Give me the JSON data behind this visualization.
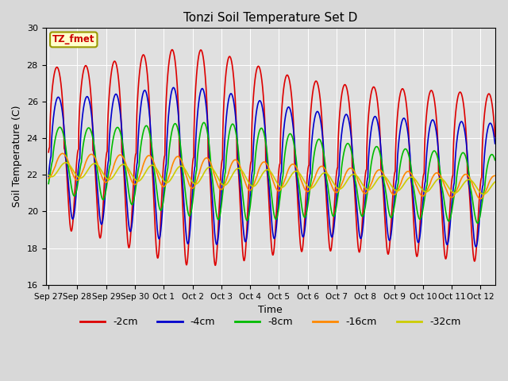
{
  "title": "Tonzi Soil Temperature Set D",
  "xlabel": "Time",
  "ylabel": "Soil Temperature (C)",
  "ylim": [
    16,
    30
  ],
  "yticks": [
    16,
    18,
    20,
    22,
    24,
    26,
    28,
    30
  ],
  "annotation": "TZ_fmet",
  "bg_color": "#e0e0e0",
  "series": [
    {
      "label": "-2cm",
      "color": "#dd0000",
      "lw": 1.2
    },
    {
      "label": "-4cm",
      "color": "#0000cc",
      "lw": 1.2
    },
    {
      "label": "-8cm",
      "color": "#00bb00",
      "lw": 1.2
    },
    {
      "label": "-16cm",
      "color": "#ff8800",
      "lw": 1.2
    },
    {
      "label": "-32cm",
      "color": "#cccc00",
      "lw": 1.2
    }
  ],
  "xtick_labels": [
    "Sep 27",
    "Sep 28",
    "Sep 29",
    "Sep 30",
    "Oct 1",
    "Oct 2",
    "Oct 3",
    "Oct 4",
    "Oct 5",
    "Oct 6",
    "Oct 7",
    "Oct 8",
    "Oct 9",
    "Oct 10",
    "Oct 11",
    "Oct 12"
  ],
  "n_days": 15.5
}
